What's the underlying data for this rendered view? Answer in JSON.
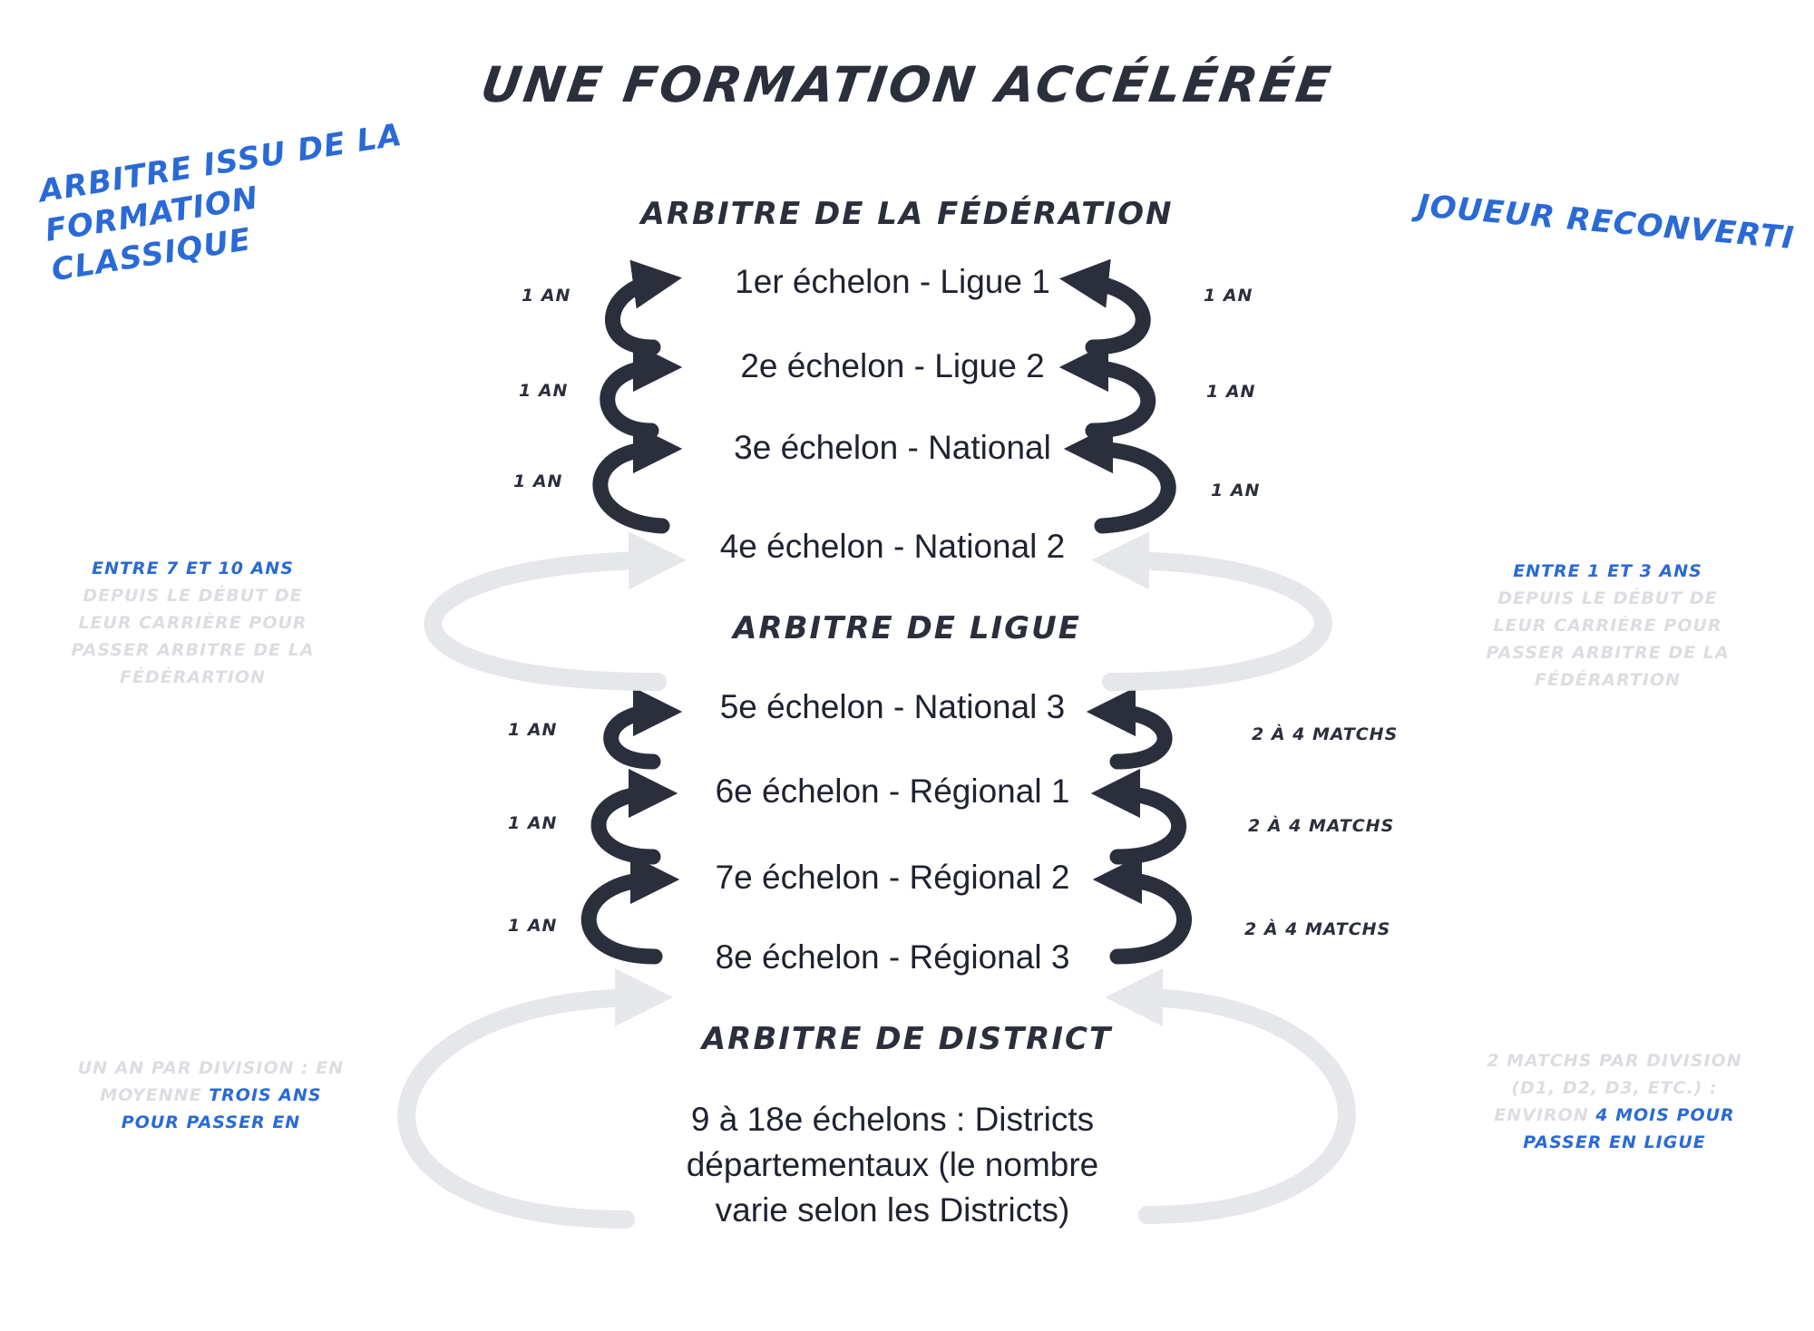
{
  "title": "UNE FORMATION ACCÉLÉRÉE",
  "left_heading": "ARBITRE ISSU DE LA FORMATION CLASSIQUE",
  "right_heading": "JOUEUR RECONVERTI",
  "sections": {
    "federation": "ARBITRE DE LA FÉDÉRATION",
    "ligue": "ARBITRE DE LIGUE",
    "district": "ARBITRE DE DISTRICT"
  },
  "levels": [
    "1er échelon - Ligue 1",
    "2e échelon - Ligue 2",
    "3e échelon - National",
    "4e échelon - National 2",
    "5e échelon - National 3",
    "6e échelon - Régional 1",
    "7e échelon - Régional 2",
    "8e échelon - Régional 3"
  ],
  "district_text": "9 à 18e échelons : Districts départementaux (le nombre varie selon les Districts)",
  "left_durations": [
    "1 AN",
    "1 AN",
    "1 AN",
    "1 AN",
    "1 AN",
    "1 AN"
  ],
  "right_durations": [
    "1 AN",
    "1 AN",
    "1 AN",
    "2 À 4 MATCHS",
    "2 À 4 MATCHS",
    "2 À 4 MATCHS"
  ],
  "notes": {
    "left_federation": {
      "highlight": "ENTRE 7 ET 10 ANS",
      "faint": "DEPUIS LE DÉBUT DE LEUR CARRIÈRE POUR PASSER ARBITRE DE LA FÉDÉRARTION"
    },
    "right_federation": {
      "highlight": "ENTRE 1 ET 3 ANS",
      "faint": "DEPUIS LE DÉBUT DE LEUR CARRIÈRE POUR PASSER ARBITRE DE LA FÉDÉRARTION"
    },
    "left_district": {
      "faint": "UN AN PAR DIVISION : EN MOYENNE",
      "highlight": "TROIS ANS POUR PASSER EN"
    },
    "right_district": {
      "faint": "2 MATCHS PAR DIVISION (D1, D2, D3, ETC.) : ENVIRON",
      "highlight": "4 MOIS POUR PASSER EN LIGUE"
    }
  },
  "colors": {
    "dark": "#2b2f3b",
    "blue": "#2a6ad6",
    "faint": "#dcdde1",
    "loop": "#e6e7ea"
  }
}
